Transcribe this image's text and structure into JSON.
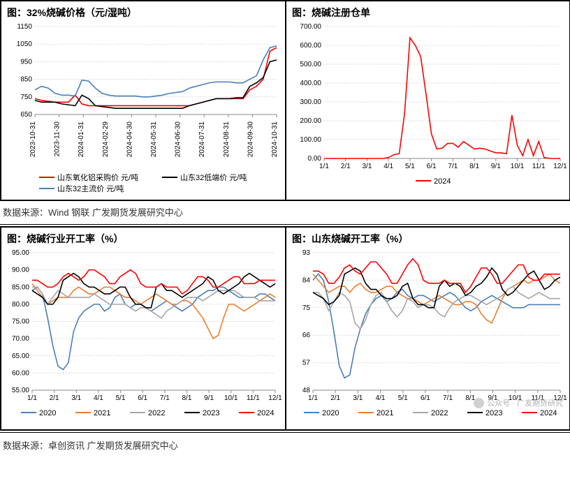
{
  "source1": "数据来源：Wind 钢联 广发期货发展研究中心",
  "source2": "数据来源：卓创资讯 广发期货发展研究中心",
  "watermark_text": "公众号 · 广发期货研究",
  "colors": {
    "red": "#ff0000",
    "black": "#000000",
    "blue": "#4a7ebb",
    "orange": "#ed7d31",
    "gray": "#a6a6a6",
    "grid": "#d9d9d9",
    "bg": "#ffffff"
  },
  "chart_tl": {
    "title": "图：32%烧碱价格（元/湿吨）",
    "type": "line",
    "ylim": [
      650,
      1150
    ],
    "ytick_step": 100,
    "x_labels": [
      "2023-10-31",
      "2023-11-30",
      "2024-01-31",
      "2024-02-29",
      "2024-04-30",
      "2024-05-31",
      "2024-06-30",
      "2024-07-31",
      "2024-08-31",
      "2024-09-30",
      "2024-10-31"
    ],
    "x_tick_labels_rotated": [
      "2023-10-31",
      "2023-11-30",
      "2024-01-31",
      "2024-02-29",
      "2024-04-30",
      "2024-05-31",
      "2024-06-30",
      "2024-07-31",
      "2024-08-31",
      "2024-09-30",
      "2024-10-31"
    ],
    "series": [
      {
        "name": "山东氧化铝采购价 元/吨",
        "color": "#ff0000",
        "values": [
          740,
          730,
          725,
          720,
          720,
          720,
          760,
          710,
          700,
          700,
          700,
          700,
          700,
          700,
          700,
          700,
          700,
          700,
          700,
          700,
          700,
          700,
          700,
          700,
          710,
          720,
          730,
          740,
          740,
          740,
          740,
          740,
          790,
          810,
          850,
          1010,
          1030
        ]
      },
      {
        "name": "山东32低端价 元/吨",
        "color": "#000000",
        "values": [
          730,
          720,
          720,
          720,
          710,
          705,
          700,
          760,
          740,
          700,
          695,
          690,
          685,
          685,
          685,
          685,
          685,
          685,
          685,
          685,
          685,
          685,
          685,
          700,
          710,
          720,
          730,
          740,
          740,
          740,
          745,
          745,
          810,
          830,
          860,
          950,
          960
        ]
      },
      {
        "name": "山东32主流价 元/吨",
        "color": "#4a7ebb",
        "values": [
          790,
          810,
          800,
          770,
          760,
          760,
          755,
          845,
          840,
          800,
          770,
          760,
          755,
          755,
          755,
          755,
          750,
          750,
          755,
          760,
          770,
          775,
          780,
          800,
          810,
          820,
          830,
          835,
          835,
          835,
          830,
          830,
          850,
          870,
          960,
          1030,
          1040
        ]
      }
    ],
    "legend_rows": [
      [
        "山东氧化铝采购价 元/吨",
        "山东32低端价 元/吨"
      ],
      [
        "山东32主流价 元/吨"
      ]
    ],
    "legend_colors_rows": [
      [
        "#ff0000",
        "#000000"
      ],
      [
        "#4a7ebb"
      ]
    ]
  },
  "chart_tr": {
    "title": "图：烧碱注册仓单",
    "type": "line",
    "ylim": [
      0,
      700
    ],
    "ytick_step": 100,
    "x_labels": [
      "1/1",
      "2/1",
      "3/1",
      "4/1",
      "5/1",
      "6/1",
      "7/1",
      "8/1",
      "9/1",
      "10/1",
      "11/1",
      "12/1"
    ],
    "series": [
      {
        "name": "2024",
        "color": "#ff0000",
        "values": [
          0,
          0,
          0,
          0,
          0,
          0,
          0,
          0,
          0,
          0,
          0,
          0,
          5,
          20,
          25,
          240,
          640,
          600,
          540,
          340,
          130,
          50,
          55,
          80,
          80,
          60,
          90,
          70,
          50,
          55,
          50,
          40,
          30,
          30,
          25,
          230,
          70,
          15,
          100,
          15,
          90,
          5,
          0,
          0,
          0
        ]
      }
    ],
    "legend": [
      "2024"
    ],
    "legend_colors": [
      "#ff0000"
    ]
  },
  "chart_bl": {
    "title": "图：烧碱行业开工率（%）",
    "type": "line",
    "ylim": [
      55,
      95
    ],
    "ytick_step": 5,
    "x_labels": [
      "1/1",
      "2/1",
      "3/1",
      "4/1",
      "5/1",
      "6/1",
      "7/1",
      "8/1",
      "9/1",
      "10/1",
      "11/1",
      "12/1"
    ],
    "series": [
      {
        "name": "2020",
        "color": "#4a7ebb",
        "values": [
          84,
          85,
          83,
          76,
          68,
          62,
          61,
          63,
          72,
          76,
          78,
          79,
          80,
          80,
          78,
          79,
          82,
          83,
          80,
          79,
          80,
          80,
          79,
          78,
          79,
          80,
          81,
          80,
          79,
          78,
          79,
          80,
          82,
          83,
          84,
          84,
          85,
          85,
          84,
          83,
          82,
          82,
          82,
          82,
          83,
          83,
          82,
          81
        ]
      },
      {
        "name": "2021",
        "color": "#ed7d31",
        "values": [
          86,
          84,
          82,
          80,
          81,
          82,
          82,
          82,
          84,
          85,
          84,
          83,
          83,
          84,
          85,
          85,
          84,
          83,
          82,
          82,
          81,
          80,
          81,
          82,
          83,
          82,
          81,
          80,
          80,
          81,
          81,
          80,
          78,
          76,
          73,
          70,
          71,
          76,
          80,
          80,
          79,
          78,
          79,
          80,
          81,
          82,
          83,
          82
        ]
      },
      {
        "name": "2022",
        "color": "#a6a6a6",
        "values": [
          85,
          85,
          83,
          80,
          82,
          84,
          83,
          82,
          82,
          82,
          82,
          82,
          83,
          82,
          81,
          80,
          80,
          80,
          80,
          79,
          78,
          79,
          79,
          78,
          77,
          76,
          78,
          79,
          80,
          81,
          82,
          82,
          82,
          81,
          82,
          83,
          84,
          84,
          84,
          84,
          83,
          82,
          82,
          82,
          81,
          81,
          81,
          81
        ]
      },
      {
        "name": "2023",
        "color": "#000000",
        "values": [
          84,
          83,
          82,
          80,
          80,
          82,
          87,
          88,
          89,
          88,
          86,
          85,
          85,
          84,
          83,
          83,
          84,
          85,
          85,
          82,
          80,
          80,
          79,
          79,
          85,
          86,
          84,
          84,
          83,
          82,
          83,
          84,
          85,
          86,
          88,
          87,
          84,
          83,
          84,
          85,
          86,
          88,
          89,
          88,
          87,
          86,
          85,
          86
        ]
      },
      {
        "name": "2024",
        "color": "#ff0000",
        "values": [
          87,
          87,
          86,
          85,
          85,
          86,
          88,
          89,
          88,
          87,
          88,
          90,
          90,
          89,
          88,
          86,
          86,
          88,
          89,
          90,
          89,
          86,
          85,
          85,
          85,
          86,
          85,
          85,
          85,
          83,
          84,
          86,
          88,
          88,
          87,
          85,
          85,
          86,
          87,
          88,
          88,
          86,
          86,
          86,
          87,
          87,
          87,
          87
        ]
      }
    ],
    "legend": [
      "2020",
      "2021",
      "2022",
      "2023",
      "2024"
    ],
    "legend_colors": [
      "#4a7ebb",
      "#ed7d31",
      "#a6a6a6",
      "#000000",
      "#ff0000"
    ]
  },
  "chart_br": {
    "title": "图：山东烧碱开工率（%）",
    "type": "line",
    "ylim": [
      48,
      93
    ],
    "ytick_step": 9,
    "x_labels": [
      "1/1",
      "2/1",
      "3/1",
      "4/1",
      "5/1",
      "6/1",
      "7/1",
      "8/1",
      "9/1",
      "10/1",
      "11/1",
      "12/1"
    ],
    "series": [
      {
        "name": "2020",
        "color": "#4a7ebb",
        "values": [
          84,
          86,
          84,
          77,
          67,
          56,
          52,
          53,
          62,
          68,
          73,
          76,
          78,
          79,
          77,
          78,
          80,
          81,
          79,
          78,
          79,
          79,
          78,
          77,
          78,
          79,
          80,
          79,
          77,
          75,
          74,
          75,
          77,
          78,
          79,
          78,
          77,
          76,
          75,
          75,
          75,
          76,
          76,
          76,
          76,
          76,
          76,
          76
        ]
      },
      {
        "name": "2021",
        "color": "#ed7d31",
        "values": [
          86,
          84,
          82,
          80,
          81,
          82,
          82,
          80,
          82,
          83,
          81,
          80,
          80,
          81,
          82,
          82,
          80,
          79,
          78,
          78,
          77,
          76,
          77,
          78,
          79,
          78,
          77,
          76,
          76,
          77,
          77,
          76,
          73,
          71,
          70,
          74,
          78,
          81,
          82,
          83,
          84,
          83,
          84,
          84,
          85,
          86,
          84,
          83
        ]
      },
      {
        "name": "2022",
        "color": "#a6a6a6",
        "values": [
          80,
          80,
          78,
          74,
          77,
          80,
          79,
          77,
          70,
          68,
          71,
          76,
          79,
          80,
          77,
          74,
          72,
          74,
          78,
          77,
          75,
          76,
          76,
          75,
          73,
          72,
          75,
          77,
          78,
          79,
          79,
          78,
          77,
          76,
          77,
          78,
          79,
          81,
          82,
          80,
          79,
          78,
          79,
          80,
          79,
          78,
          78,
          78
        ]
      },
      {
        "name": "2023",
        "color": "#000000",
        "values": [
          80,
          79,
          78,
          76,
          77,
          79,
          86,
          87,
          88,
          87,
          83,
          81,
          81,
          79,
          78,
          78,
          79,
          82,
          83,
          78,
          76,
          76,
          75,
          75,
          82,
          84,
          82,
          83,
          82,
          79,
          80,
          82,
          83,
          85,
          88,
          86,
          81,
          79,
          80,
          82,
          84,
          86,
          87,
          84,
          81,
          82,
          84,
          85
        ]
      },
      {
        "name": "2024",
        "color": "#ff0000",
        "values": [
          87,
          87,
          86,
          83,
          83,
          85,
          88,
          89,
          87,
          86,
          88,
          90,
          90,
          88,
          86,
          83,
          83,
          86,
          89,
          91,
          89,
          84,
          83,
          83,
          83,
          84,
          83,
          83,
          83,
          80,
          82,
          85,
          88,
          88,
          86,
          83,
          83,
          85,
          87,
          89,
          89,
          85,
          84,
          84,
          86,
          86,
          86,
          86
        ]
      }
    ],
    "legend": [
      "2020",
      "2021",
      "2022",
      "2023",
      "2024"
    ],
    "legend_colors": [
      "#4a7ebb",
      "#ed7d31",
      "#a6a6a6",
      "#000000",
      "#ff0000"
    ]
  }
}
